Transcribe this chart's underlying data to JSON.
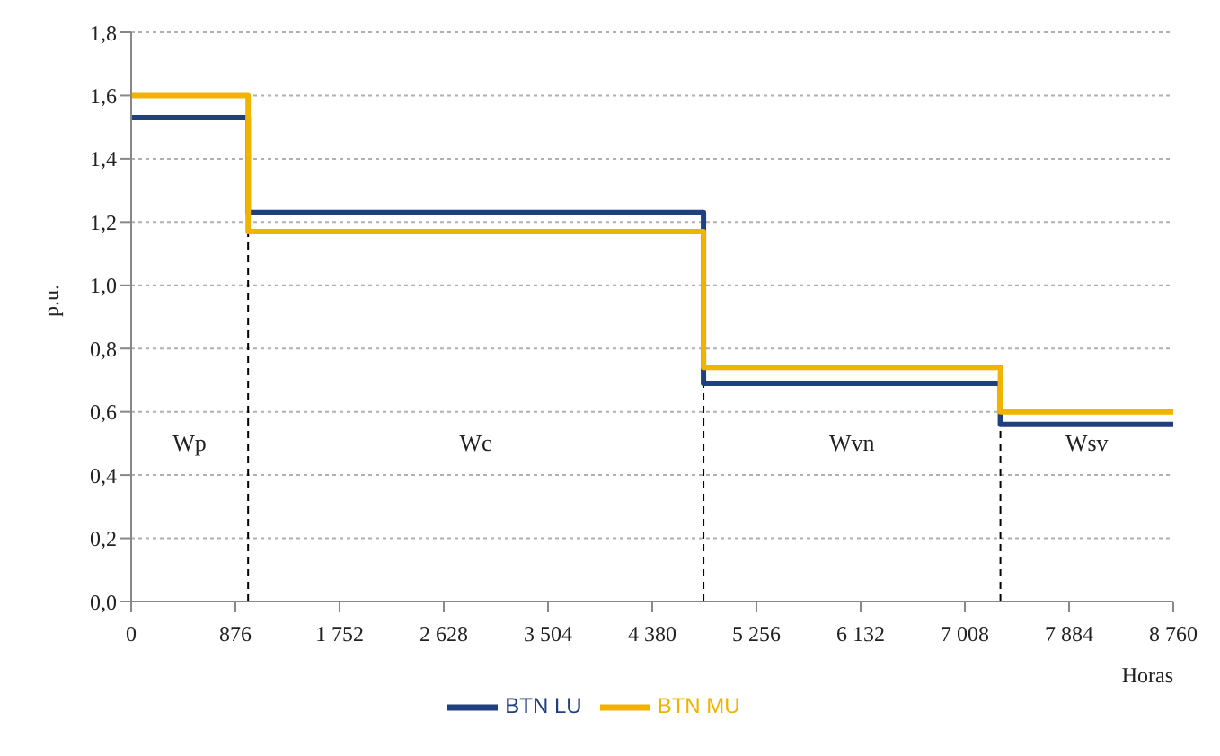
{
  "chart_data": {
    "type": "step",
    "xlabel": "Horas",
    "ylabel": "p.u.",
    "x": [
      0,
      983,
      4811,
      7307,
      8760
    ],
    "series": [
      {
        "name": "BTN LU",
        "color": "#203f7f",
        "values": [
          1.53,
          1.23,
          0.69,
          0.56,
          0.56
        ]
      },
      {
        "name": "BTN MU",
        "color": "#f0b400",
        "values": [
          1.6,
          1.17,
          0.74,
          0.6,
          0.6
        ]
      }
    ],
    "xlim": [
      0,
      8760
    ],
    "xticks": [
      0,
      876,
      {
        "value": 1752,
        "label": "1 752"
      },
      {
        "value": 2628,
        "label": "2 628"
      },
      {
        "value": 3504,
        "label": "3 504"
      },
      {
        "value": 4380,
        "label": "4 380"
      },
      {
        "value": 5256,
        "label": "5 256"
      },
      {
        "value": 6132,
        "label": "6 132"
      },
      {
        "value": 7008,
        "label": "7 008"
      },
      {
        "value": 7884,
        "label": "7 884"
      },
      {
        "value": 8760,
        "label": "8 760"
      }
    ],
    "ylim": [
      0,
      1.8
    ],
    "yticks": [
      {
        "value": 0,
        "label": "0,0"
      },
      {
        "value": 0.2,
        "label": "0,2"
      },
      {
        "value": 0.4,
        "label": "0,4"
      },
      {
        "value": 0.6,
        "label": "0,6"
      },
      {
        "value": 0.8,
        "label": "0,8"
      },
      {
        "value": 1.0,
        "label": "1,0"
      },
      {
        "value": 1.2,
        "label": "1,2"
      },
      {
        "value": 1.4,
        "label": "1,4"
      },
      {
        "value": 1.6,
        "label": "1,6"
      },
      {
        "value": 1.8,
        "label": "1,8"
      }
    ],
    "ref_lines": [
      {
        "axis": "x",
        "value": 983,
        "color": "#000000",
        "line_style": "dashed"
      },
      {
        "axis": "x",
        "value": 4811,
        "color": "#000000",
        "line_style": "dashed"
      },
      {
        "axis": "x",
        "value": 7307,
        "color": "#000000",
        "line_style": "dashed"
      }
    ],
    "annotations": [
      "Wp",
      "Wc",
      "Wvn",
      "Wsv"
    ],
    "grid": "y",
    "legend": "bottom",
    "marker": "none",
    "line_style": "solid"
  }
}
